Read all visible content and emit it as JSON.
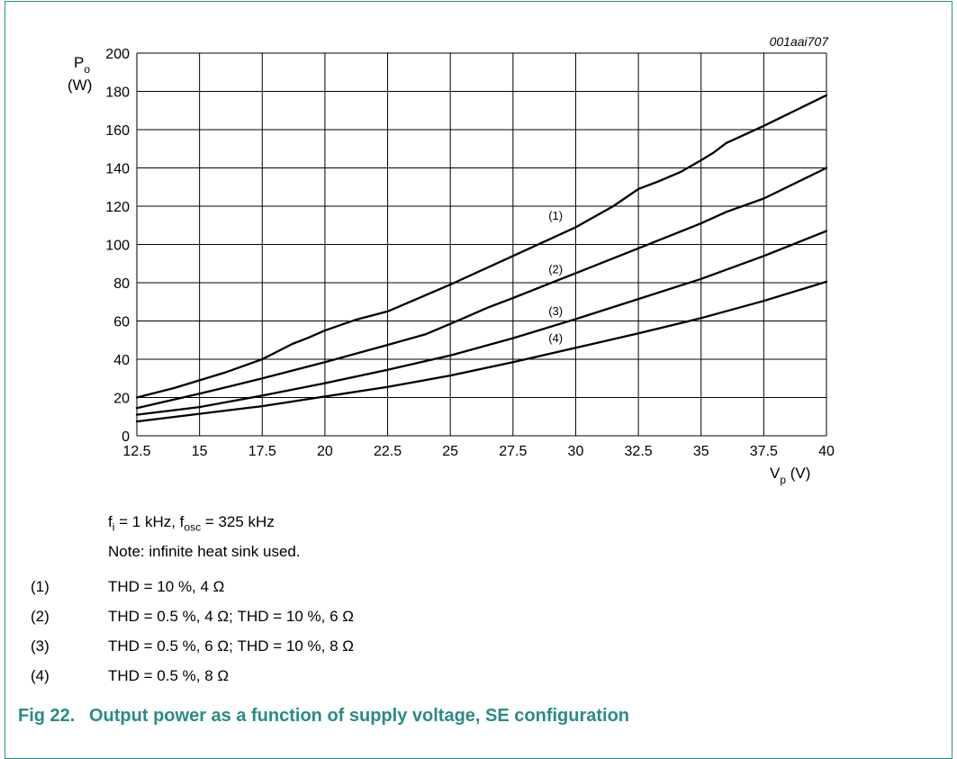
{
  "chart_data": {
    "type": "line",
    "figure_code": "001aai707",
    "ylabel_main": "P",
    "ylabel_sub": "o",
    "ylabel_unit": "(W)",
    "xlabel_main": "V",
    "xlabel_sub": "p",
    "xlabel_unit": "(V)",
    "xlim": [
      12.5,
      40
    ],
    "ylim": [
      0,
      200
    ],
    "xticks": [
      "12.5",
      "15",
      "17.5",
      "20",
      "22.5",
      "25",
      "27.5",
      "30",
      "32.5",
      "35",
      "37.5",
      "40"
    ],
    "yticks": [
      "0",
      "20",
      "40",
      "60",
      "80",
      "100",
      "120",
      "140",
      "160",
      "180",
      "200"
    ],
    "grid": true,
    "series": [
      {
        "name": "(1)",
        "label_at": [
          29.2,
          113
        ],
        "points": [
          [
            12.5,
            20
          ],
          [
            14,
            25
          ],
          [
            16,
            33
          ],
          [
            17.5,
            40
          ],
          [
            18.7,
            48
          ],
          [
            19.3,
            51
          ],
          [
            20,
            55
          ],
          [
            21.2,
            60.5
          ],
          [
            22.5,
            65
          ],
          [
            25,
            79
          ],
          [
            27.5,
            94
          ],
          [
            30,
            109
          ],
          [
            31.5,
            120
          ],
          [
            32.5,
            129
          ],
          [
            33.3,
            133
          ],
          [
            34.2,
            138
          ],
          [
            35,
            144
          ],
          [
            35.5,
            148
          ],
          [
            36,
            153
          ],
          [
            37.5,
            162
          ],
          [
            40,
            178
          ]
        ]
      },
      {
        "name": "(2)",
        "label_at": [
          29.2,
          85
        ],
        "points": [
          [
            12.5,
            14.5
          ],
          [
            15,
            22
          ],
          [
            17.5,
            30
          ],
          [
            20,
            38.5
          ],
          [
            22.5,
            47.5
          ],
          [
            24,
            53
          ],
          [
            25,
            58.5
          ],
          [
            26.5,
            67
          ],
          [
            27.5,
            72
          ],
          [
            30,
            85
          ],
          [
            32.5,
            98
          ],
          [
            35,
            111
          ],
          [
            36,
            117
          ],
          [
            37.5,
            124
          ],
          [
            40,
            140
          ]
        ]
      },
      {
        "name": "(3)",
        "label_at": [
          29.2,
          63
        ],
        "points": [
          [
            12.5,
            11
          ],
          [
            15,
            15
          ],
          [
            17.5,
            21
          ],
          [
            20,
            27.5
          ],
          [
            22.5,
            34.5
          ],
          [
            25,
            42
          ],
          [
            27.5,
            51
          ],
          [
            30,
            61
          ],
          [
            32.5,
            71.5
          ],
          [
            35,
            82
          ],
          [
            37.5,
            94
          ],
          [
            40,
            107
          ]
        ]
      },
      {
        "name": "(4)",
        "label_at": [
          29.2,
          49
        ],
        "points": [
          [
            12.5,
            7.5
          ],
          [
            15,
            11.5
          ],
          [
            17.5,
            15.5
          ],
          [
            20,
            20.5
          ],
          [
            22.5,
            25.5
          ],
          [
            25,
            31.5
          ],
          [
            27.5,
            38.5
          ],
          [
            30,
            46
          ],
          [
            32.5,
            53.5
          ],
          [
            35,
            61.5
          ],
          [
            37.5,
            70.5
          ],
          [
            40,
            80.5
          ]
        ]
      }
    ]
  },
  "conditions": {
    "f": "f",
    "f_sub": "i",
    "f_rest": " = 1 kHz, f",
    "osc_sub": "osc",
    "osc_rest": " = 325 kHz",
    "note": "Note: infinite heat sink used."
  },
  "notes": [
    {
      "num": "(1)",
      "text": "THD = 10 %, 4 Ω"
    },
    {
      "num": "(2)",
      "text": "THD = 0.5 %, 4 Ω; THD = 10 %, 6 Ω"
    },
    {
      "num": "(3)",
      "text": "THD = 0.5 %, 6 Ω; THD = 10 %, 8 Ω"
    },
    {
      "num": "(4)",
      "text": "THD = 0.5 %, 8 Ω"
    }
  ],
  "caption": {
    "fig": "Fig 22.",
    "title": "Output power as a function of supply voltage, SE configuration"
  },
  "colors": {
    "caption": "#2a8b86",
    "frame": "#2f8f86",
    "curve": "#000000"
  }
}
